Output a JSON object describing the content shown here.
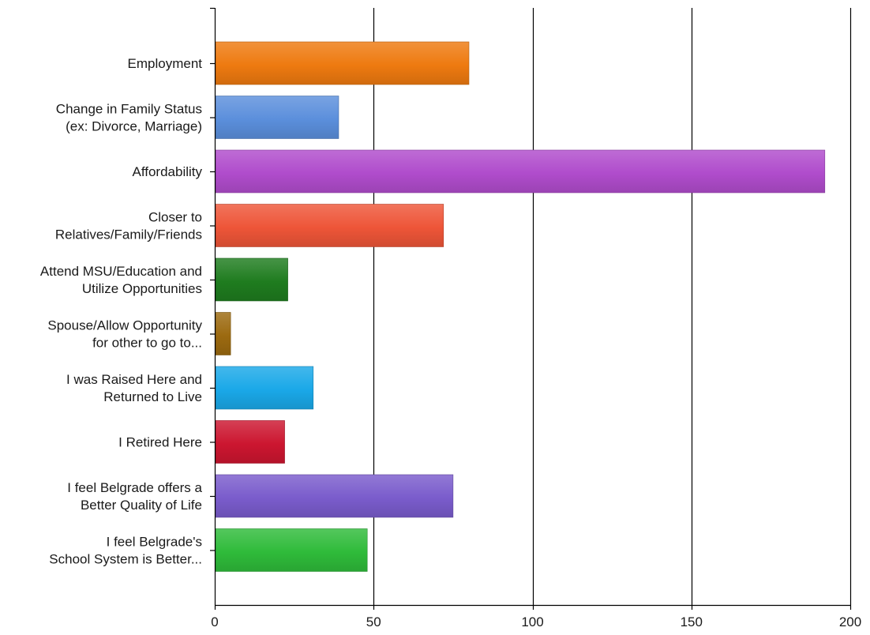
{
  "chart_data": {
    "type": "bar",
    "orientation": "horizontal",
    "title": "",
    "xlabel": "",
    "ylabel": "",
    "xlim": [
      0,
      200
    ],
    "ticks": [
      "0",
      "50",
      "100",
      "150",
      "200"
    ],
    "grid": "vertical",
    "legend": "none",
    "categories": [
      [
        "Employment"
      ],
      [
        "Change in Family Status",
        "(ex: Divorce, Marriage)"
      ],
      [
        "Affordability"
      ],
      [
        "Closer to",
        "Relatives/Family/Friends"
      ],
      [
        "Attend MSU/Education and",
        "Utilize Opportunities"
      ],
      [
        "Spouse/Allow Opportunity",
        "for other to go to..."
      ],
      [
        "I was Raised Here and",
        "Returned to Live"
      ],
      [
        "I Retired Here"
      ],
      [
        "I feel Belgrade offers a",
        "Better Quality of Life"
      ],
      [
        "I feel Belgrade's",
        "School System is Better..."
      ]
    ],
    "values": [
      80,
      39,
      192,
      72,
      23,
      5,
      31,
      22,
      75,
      48
    ],
    "colors": [
      "#ee7a10",
      "#5b8fdc",
      "#b04ccc",
      "#ee5538",
      "#1f7c1f",
      "#9c6a10",
      "#1aa8e8",
      "#cc1630",
      "#7a5ccc",
      "#2fbb3a"
    ]
  }
}
